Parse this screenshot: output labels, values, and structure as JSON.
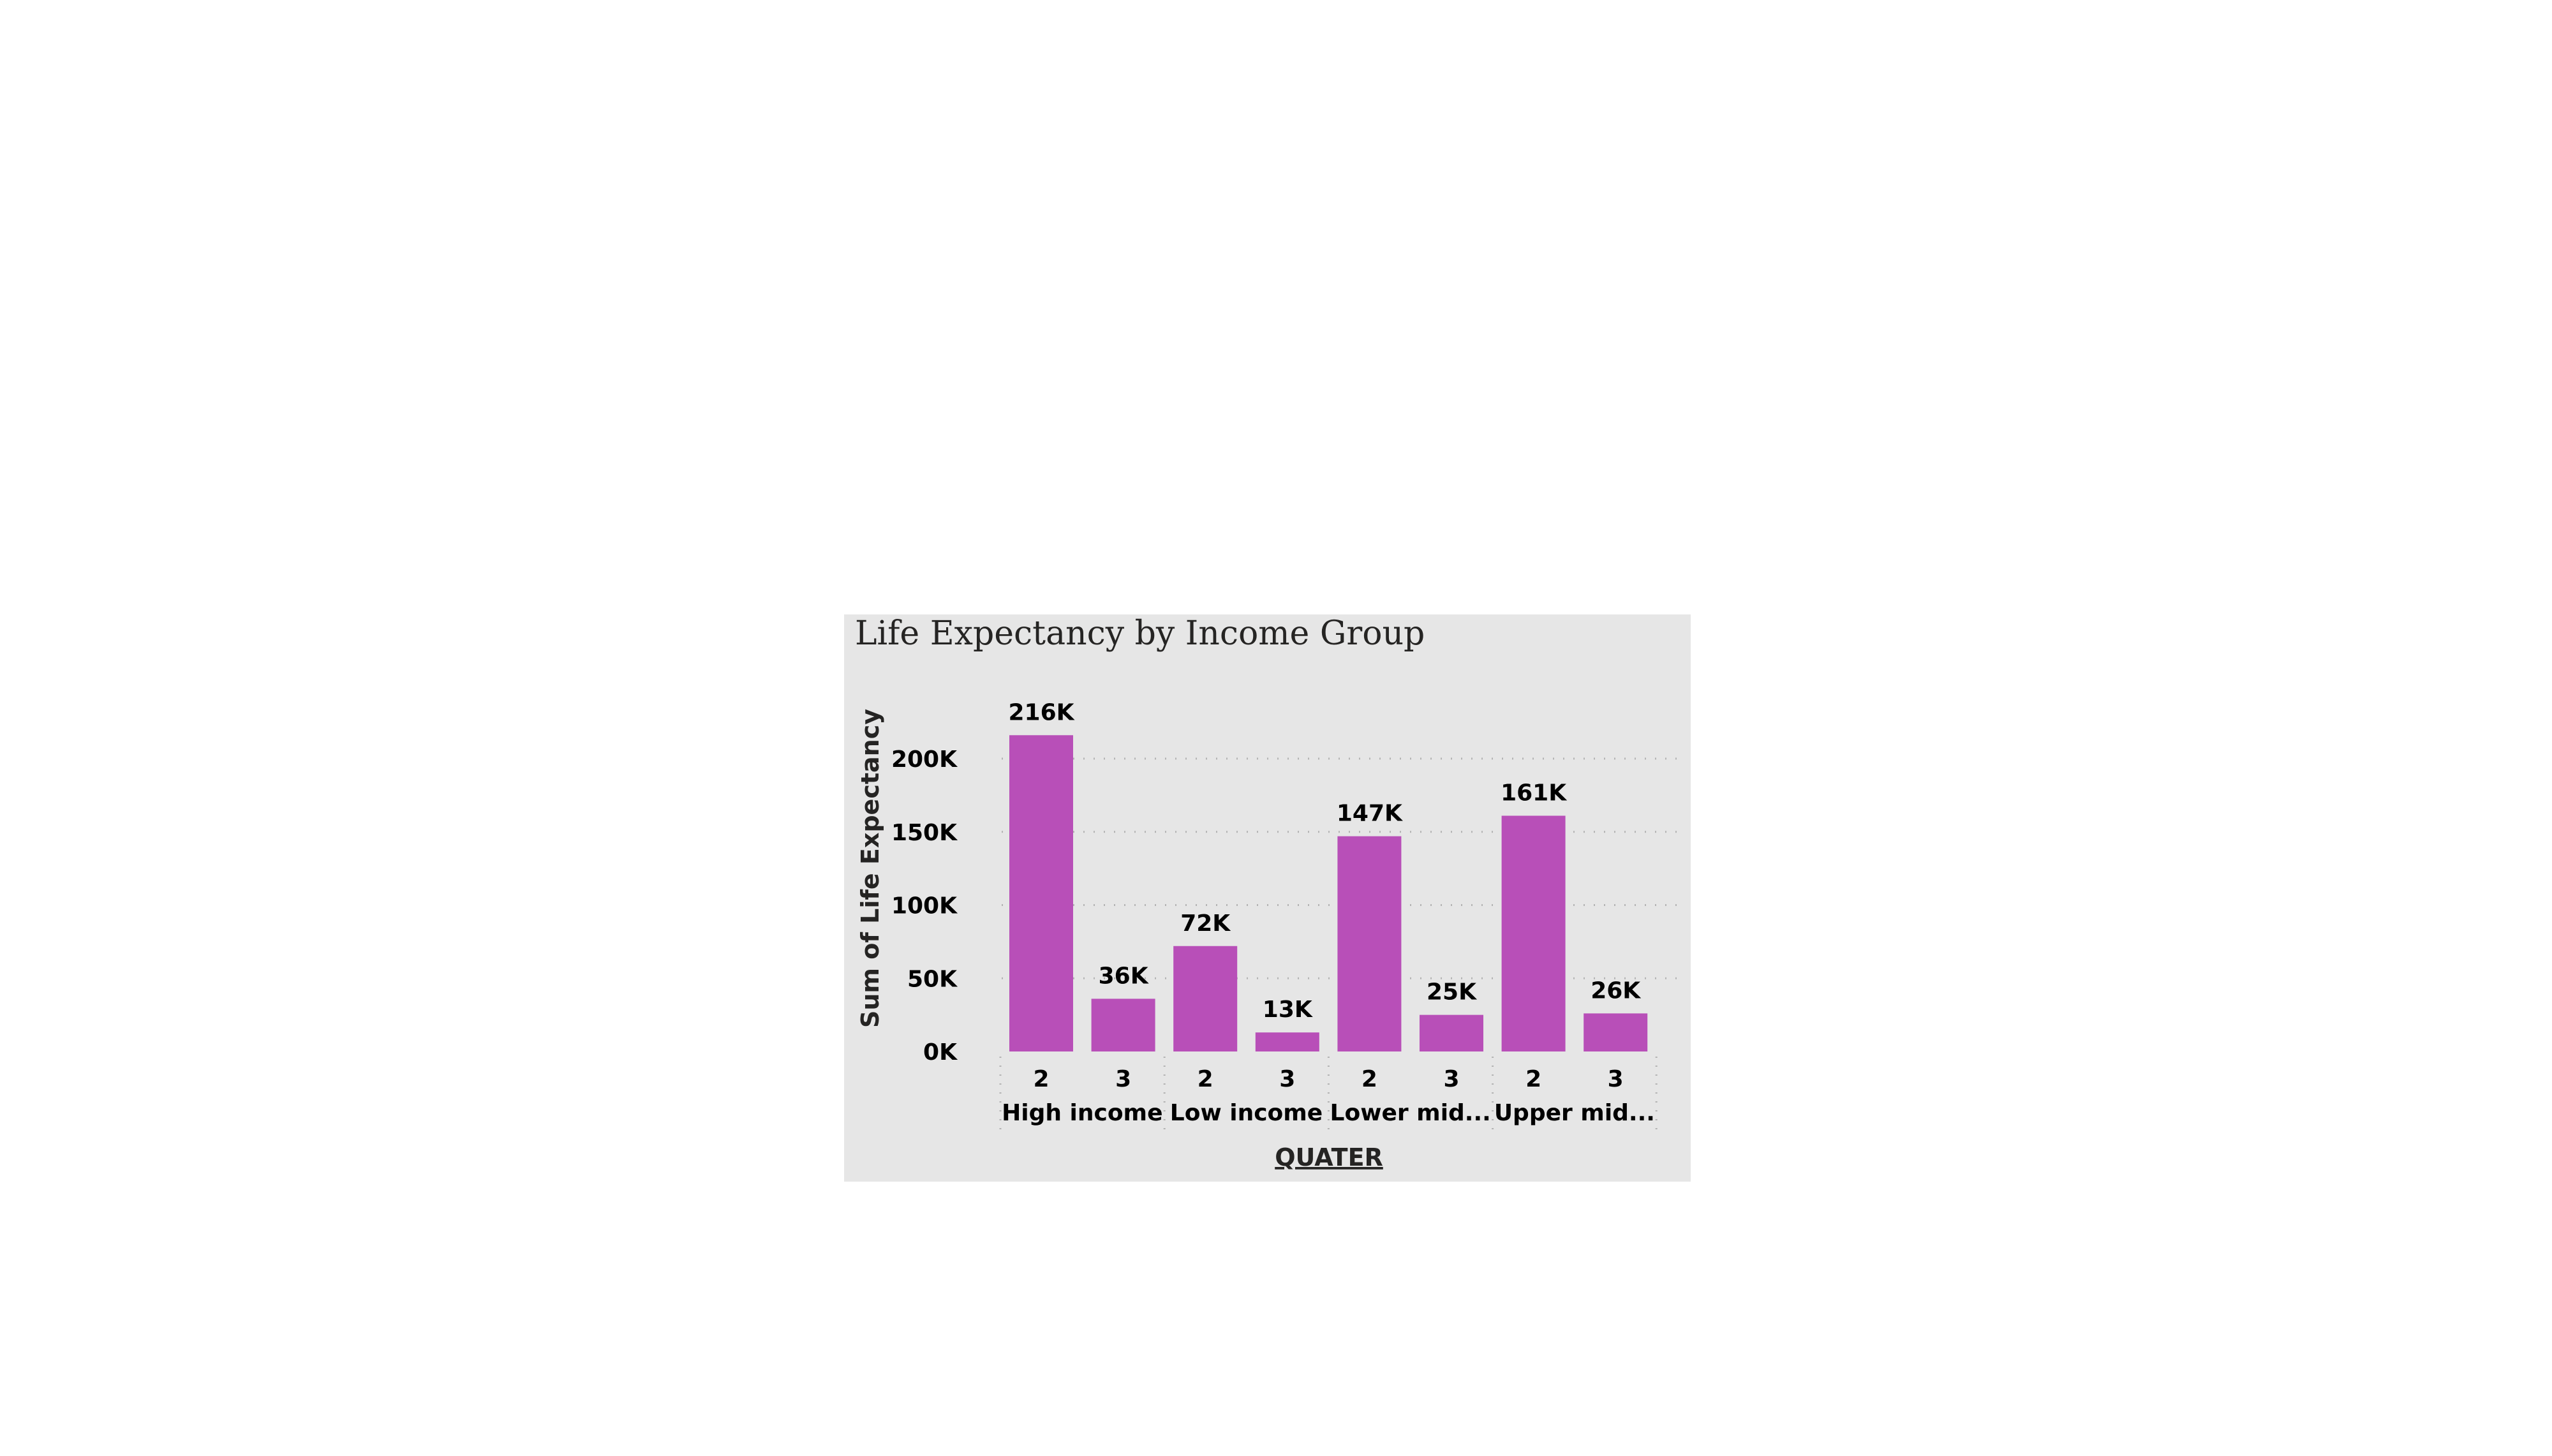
{
  "visual": {
    "title": "Life Expectancy by Income Group",
    "background": "#e6e6e6"
  },
  "chart_data": {
    "type": "bar",
    "title": "Life Expectancy by Income Group",
    "xlabel": "QUATER",
    "ylabel": "Sum of Life Expectancy",
    "ylim": [
      0,
      216000
    ],
    "yticks": [
      0,
      50000,
      100000,
      150000,
      200000
    ],
    "ytick_labels": [
      "0K",
      "50K",
      "100K",
      "150K",
      "200K"
    ],
    "grid": true,
    "bar_color": "#b84fb8",
    "groups": [
      {
        "label": "High income",
        "categories": [
          "2",
          "3"
        ],
        "values": [
          216000,
          36000
        ],
        "data_labels": [
          "216K",
          "36K"
        ]
      },
      {
        "label": "Low income",
        "categories": [
          "2",
          "3"
        ],
        "values": [
          72000,
          13000
        ],
        "data_labels": [
          "72K",
          "13K"
        ]
      },
      {
        "label": "Lower mid...",
        "categories": [
          "2",
          "3"
        ],
        "values": [
          147000,
          25000
        ],
        "data_labels": [
          "147K",
          "25K"
        ]
      },
      {
        "label": "Upper mid...",
        "categories": [
          "2",
          "3"
        ],
        "values": [
          161000,
          26000
        ],
        "data_labels": [
          "161K",
          "26K"
        ]
      }
    ]
  }
}
